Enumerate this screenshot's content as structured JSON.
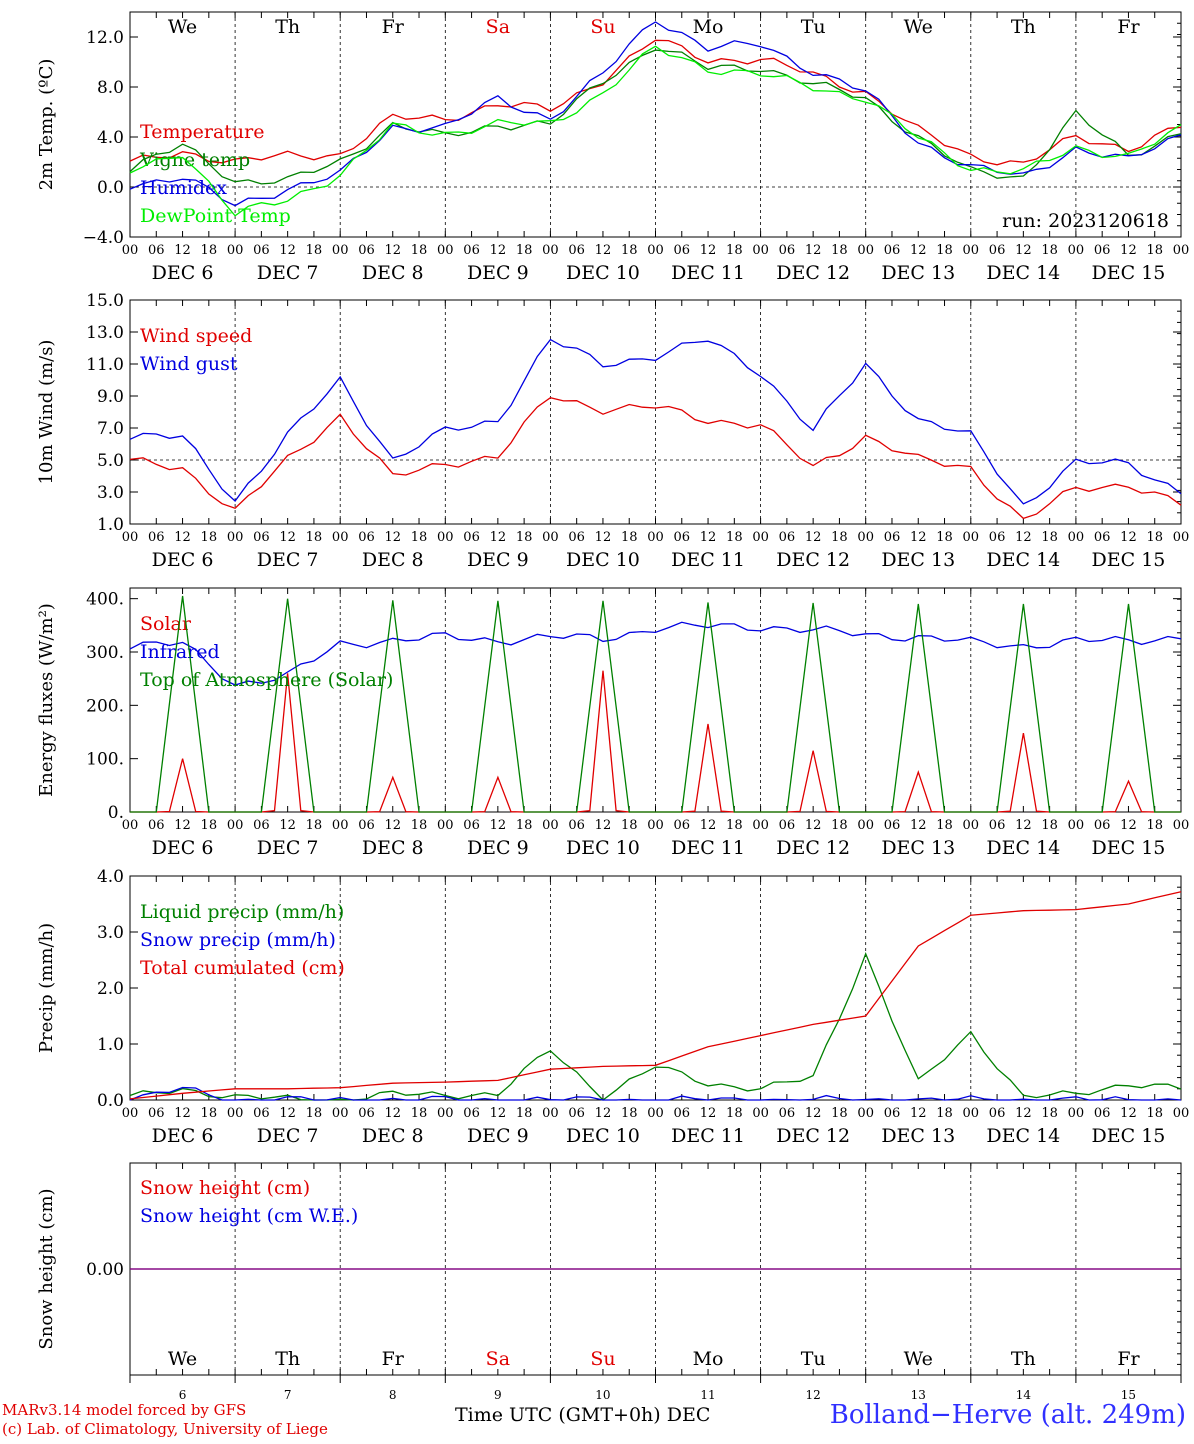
{
  "colors": {
    "red": "#e00000",
    "green": "#008000",
    "blue": "#0000e0",
    "lightgreen": "#00ee00",
    "purple": "#800080",
    "black": "#000000"
  },
  "days": [
    "We",
    "Th",
    "Fr",
    "Sa",
    "Su",
    "Mo",
    "Tu",
    "We",
    "Th",
    "Fr"
  ],
  "day_colors": [
    "black",
    "black",
    "black",
    "red",
    "red",
    "black",
    "black",
    "black",
    "black",
    "black"
  ],
  "dec_labels": [
    "DEC  6",
    "DEC  7",
    "DEC  8",
    "DEC  9",
    "DEC 10",
    "DEC 11",
    "DEC 12",
    "DEC 13",
    "DEC 14",
    "DEC 15"
  ],
  "date_numbers": [
    "6",
    "7",
    "8",
    "9",
    "10",
    "11",
    "12",
    "13",
    "14",
    "15"
  ],
  "hour_ticks": [
    "00",
    "06",
    "12",
    "18"
  ],
  "chart_data": [
    {
      "type": "line",
      "ylabel": "2m Temp. (ºC)",
      "ylim": [
        -4,
        14
      ],
      "yticks": [
        "−4.0",
        "0.0",
        "4.0",
        "8.0",
        "12.0"
      ],
      "ytick_values": [
        -4,
        0,
        4,
        8,
        12
      ],
      "refline": 0,
      "annotation": "run: 2023120618",
      "x_hours": [
        0,
        12,
        24,
        36,
        48,
        60,
        72,
        84,
        96,
        108,
        120,
        132,
        144,
        156,
        168,
        180,
        192,
        204,
        216,
        228,
        240
      ],
      "series": [
        {
          "name": "Temperature",
          "color": "red",
          "values": [
            1.9,
            2.8,
            2.0,
            2.5,
            2.6,
            5.5,
            5.5,
            6.6,
            6.2,
            8.6,
            11.8,
            10.2,
            10.2,
            9.0,
            7.6,
            4.5,
            2.5,
            1.8,
            4.0,
            3.1,
            4.8
          ]
        },
        {
          "name": "Vigne temp",
          "color": "green",
          "values": [
            1.5,
            3.3,
            0.5,
            0.5,
            2.0,
            5.0,
            4.0,
            5.0,
            5.0,
            8.5,
            11.3,
            9.5,
            9.6,
            8.2,
            7.1,
            4.0,
            1.2,
            0.8,
            5.8,
            2.5,
            4.4
          ]
        },
        {
          "name": "Humidex",
          "color": "blue",
          "values": [
            0.2,
            0.8,
            -1.5,
            -0.1,
            1.0,
            4.8,
            4.8,
            7.0,
            5.5,
            9.0,
            13.5,
            11.1,
            11.4,
            9.3,
            7.6,
            3.6,
            1.6,
            0.8,
            3.1,
            2.1,
            4.2
          ]
        },
        {
          "name": "DewPoint Temp",
          "color": "lightgreen",
          "values": [
            1.2,
            2.8,
            -2.2,
            -1.0,
            1.0,
            4.8,
            4.3,
            5.0,
            5.1,
            7.5,
            11.1,
            9.5,
            9.0,
            8.0,
            7.1,
            3.9,
            1.5,
            1.2,
            3.1,
            2.5,
            4.6
          ]
        }
      ]
    },
    {
      "type": "line",
      "ylabel": "10m Wind (m/s)",
      "ylim": [
        1,
        15
      ],
      "yticks": [
        "1.0",
        "3.0",
        "5.0",
        "7.0",
        "9.0",
        "11.0",
        "13.0",
        "15.0"
      ],
      "ytick_values": [
        1,
        3,
        5,
        7,
        9,
        11,
        13,
        15
      ],
      "refline": 5,
      "x_hours": [
        0,
        12,
        24,
        36,
        48,
        60,
        72,
        84,
        96,
        108,
        120,
        132,
        144,
        156,
        168,
        180,
        192,
        204,
        216,
        228,
        240
      ],
      "series": [
        {
          "name": "Wind speed",
          "color": "red",
          "values": [
            4.9,
            4.5,
            1.8,
            5.0,
            7.8,
            3.9,
            4.8,
            5.2,
            9.0,
            8.2,
            8.3,
            7.5,
            7.2,
            4.5,
            6.5,
            5.0,
            4.5,
            1.2,
            3.2,
            3.5,
            2.2
          ]
        },
        {
          "name": "Wind gust",
          "color": "blue",
          "values": [
            6.5,
            6.4,
            2.5,
            6.5,
            10.0,
            5.0,
            6.8,
            7.5,
            12.5,
            11.0,
            11.5,
            12.5,
            10.5,
            6.8,
            11.0,
            7.5,
            6.5,
            2.2,
            4.8,
            4.8,
            3.0
          ]
        }
      ]
    },
    {
      "type": "line",
      "ylabel": "Energy fluxes (W/m²)",
      "ylim": [
        0,
        420
      ],
      "yticks": [
        "0.",
        "100.",
        "200.",
        "300.",
        "400."
      ],
      "ytick_values": [
        0,
        100,
        200,
        300,
        400
      ],
      "x_hours": [
        0,
        12,
        24,
        36,
        48,
        60,
        72,
        84,
        96,
        108,
        120,
        132,
        144,
        156,
        168,
        180,
        192,
        204,
        216,
        228,
        240
      ],
      "series": [
        {
          "name": "Solar",
          "color": "red",
          "peaks": [
            100,
            260,
            65,
            65,
            265,
            165,
            115,
            75,
            148,
            58
          ]
        },
        {
          "name": "Infrared",
          "color": "blue",
          "values": [
            312,
            315,
            240,
            255,
            315,
            322,
            328,
            322,
            328,
            325,
            345,
            348,
            348,
            340,
            333,
            328,
            318,
            312,
            320,
            322,
            328
          ]
        },
        {
          "name": "Top of Atmosphere (Solar)",
          "color": "green",
          "peaks": [
            405,
            400,
            397,
            396,
            396,
            393,
            392,
            390,
            390,
            390
          ]
        }
      ]
    },
    {
      "type": "line",
      "ylabel": "Precip (mm/h)",
      "ylim": [
        0,
        4
      ],
      "yticks": [
        "0.0",
        "1.0",
        "2.0",
        "3.0",
        "4.0"
      ],
      "ytick_values": [
        0,
        1,
        2,
        3,
        4
      ],
      "x_hours": [
        0,
        12,
        24,
        36,
        48,
        60,
        72,
        84,
        96,
        108,
        120,
        132,
        144,
        156,
        168,
        180,
        192,
        204,
        216,
        228,
        240
      ],
      "series": [
        {
          "name": "Liquid precip (mm/h)",
          "color": "green",
          "values": [
            0.05,
            0.2,
            0.05,
            0.02,
            0.0,
            0.1,
            0.1,
            0.1,
            0.9,
            0.05,
            0.6,
            0.3,
            0.2,
            0.4,
            2.6,
            0.3,
            1.2,
            0.05,
            0.1,
            0.3,
            0.2
          ]
        },
        {
          "name": "Snow precip (mm/h)",
          "color": "blue",
          "values": [
            0.0,
            0.2,
            0.0,
            0.0,
            0.0,
            0.0,
            0.0,
            0.0,
            0.0,
            0.0,
            0.0,
            0.0,
            0.0,
            0.0,
            0.0,
            0.0,
            0.0,
            0.0,
            0.0,
            0.0,
            0.0
          ]
        },
        {
          "name": "Total cumulated (cm)",
          "color": "red",
          "values": [
            0.02,
            0.12,
            0.2,
            0.2,
            0.22,
            0.3,
            0.32,
            0.35,
            0.55,
            0.6,
            0.62,
            0.95,
            1.15,
            1.35,
            1.5,
            2.75,
            3.3,
            3.38,
            3.4,
            3.5,
            3.72
          ]
        }
      ]
    },
    {
      "type": "line",
      "ylabel": "Snow height (cm)",
      "ylim": [
        -1,
        1
      ],
      "yticks": [
        "0.00"
      ],
      "ytick_values": [
        0
      ],
      "x_hours": [
        0,
        240
      ],
      "series": [
        {
          "name": "Snow height (cm)",
          "color": "red",
          "values": [
            0,
            0
          ]
        },
        {
          "name": "Snow height (cm W.E.)",
          "color": "blue",
          "values": [
            0,
            0
          ]
        }
      ]
    }
  ],
  "xlabel": "Time UTC (GMT+0h) DEC",
  "credits": [
    "MARv3.14 model forced by GFS",
    "(c) Lab. of Climatology, University of Liege"
  ],
  "station": "Bolland−Herve (alt. 249m)"
}
